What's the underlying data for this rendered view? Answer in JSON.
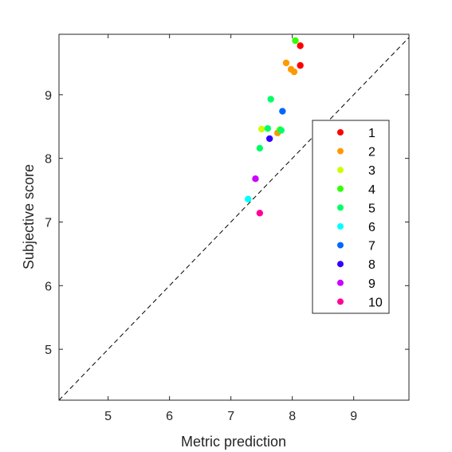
{
  "chart_data": {
    "type": "scatter",
    "title": "",
    "xlabel": "Metric prediction",
    "ylabel": "Subjective score",
    "xlim": [
      4.2,
      9.9
    ],
    "ylim": [
      4.2,
      9.95
    ],
    "xticks": [
      5,
      6,
      7,
      8,
      9
    ],
    "yticks": [
      5,
      6,
      7,
      8,
      9
    ],
    "xtick_labels": [
      "5",
      "6",
      "7",
      "8",
      "9"
    ],
    "ytick_labels": [
      "5",
      "6",
      "7",
      "8",
      "9"
    ],
    "grid": false,
    "reference_line": {
      "style": "dashed",
      "from": [
        4.2,
        4.2
      ],
      "to": [
        9.9,
        9.9
      ]
    },
    "legend": {
      "placement": "right"
    },
    "series": [
      {
        "name": "1",
        "color": "#ff0000",
        "points": [
          [
            8.13,
            9.77
          ],
          [
            8.13,
            9.46
          ]
        ]
      },
      {
        "name": "2",
        "color": "#ff9900",
        "points": [
          [
            7.9,
            9.5
          ],
          [
            7.98,
            9.4
          ],
          [
            8.03,
            9.36
          ],
          [
            7.76,
            8.4
          ]
        ]
      },
      {
        "name": "3",
        "color": "#ccff00",
        "points": [
          [
            7.5,
            8.46
          ]
        ]
      },
      {
        "name": "4",
        "color": "#33ff00",
        "points": [
          [
            8.05,
            9.85
          ],
          [
            7.8,
            8.45
          ]
        ]
      },
      {
        "name": "5",
        "color": "#00ff66",
        "points": [
          [
            7.65,
            8.93
          ],
          [
            7.6,
            8.47
          ],
          [
            7.47,
            8.16
          ],
          [
            7.82,
            8.44
          ]
        ]
      },
      {
        "name": "6",
        "color": "#00ffff",
        "points": [
          [
            7.28,
            7.36
          ]
        ]
      },
      {
        "name": "7",
        "color": "#0066ff",
        "points": [
          [
            7.84,
            8.74
          ]
        ]
      },
      {
        "name": "8",
        "color": "#3300ff",
        "points": [
          [
            7.63,
            8.31
          ]
        ]
      },
      {
        "name": "9",
        "color": "#cc00ff",
        "points": [
          [
            7.4,
            7.68
          ]
        ]
      },
      {
        "name": "10",
        "color": "#ff0099",
        "points": [
          [
            7.47,
            7.14
          ]
        ]
      }
    ]
  }
}
